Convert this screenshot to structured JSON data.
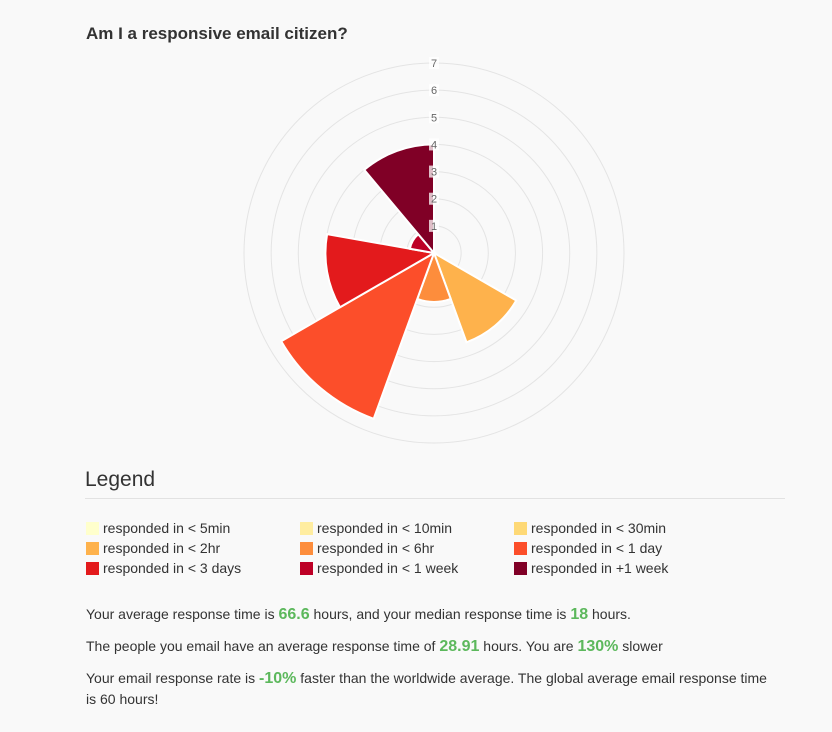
{
  "title": "Am I a responsive email citizen?",
  "legend": {
    "heading": "Legend",
    "items": [
      {
        "label": "responded in < 5min",
        "color": "#ffffcc"
      },
      {
        "label": "responded in < 10min",
        "color": "#ffeda0"
      },
      {
        "label": "responded in < 30min",
        "color": "#fed976"
      },
      {
        "label": "responded in < 2hr",
        "color": "#feb24c"
      },
      {
        "label": "responded in < 6hr",
        "color": "#fd8d3c"
      },
      {
        "label": "responded in < 1 day",
        "color": "#fc4e2a"
      },
      {
        "label": "responded in < 3 days",
        "color": "#e31a1c"
      },
      {
        "label": "responded in < 1 week",
        "color": "#bd0026"
      },
      {
        "label": "responded in +1 week",
        "color": "#800026"
      }
    ]
  },
  "stats": {
    "line1": {
      "pre": "Your average response time is ",
      "avg": "66.6",
      "mid": " hours, and your median response time is ",
      "median": "18",
      "post": " hours."
    },
    "line2": {
      "pre": "The people you email have an average response time of ",
      "others": "28.91",
      "mid": " hours. You are ",
      "pct": "130%",
      "post": " slower"
    },
    "line3": {
      "pre": "Your email response rate is ",
      "pct": "-10%",
      "post": " faster than the worldwide average. The global average email response time is 60 hours!"
    }
  },
  "chart_data": {
    "type": "polar-area",
    "title": "Am I a responsive email citizen?",
    "radial_ticks": [
      1,
      2,
      3,
      4,
      5,
      6,
      7
    ],
    "r_max": 7,
    "categories": [
      "responded in < 5min",
      "responded in < 10min",
      "responded in < 30min",
      "responded in < 2hr",
      "responded in < 6hr",
      "responded in < 1 day",
      "responded in < 3 days",
      "responded in < 1 week",
      "responded in +1 week"
    ],
    "values": [
      0,
      0,
      0,
      3.5,
      1.8,
      6.5,
      4.0,
      0.9,
      4.0
    ],
    "colors": [
      "#ffffcc",
      "#ffeda0",
      "#fed976",
      "#feb24c",
      "#fd8d3c",
      "#fc4e2a",
      "#e31a1c",
      "#bd0026",
      "#800026"
    ]
  }
}
